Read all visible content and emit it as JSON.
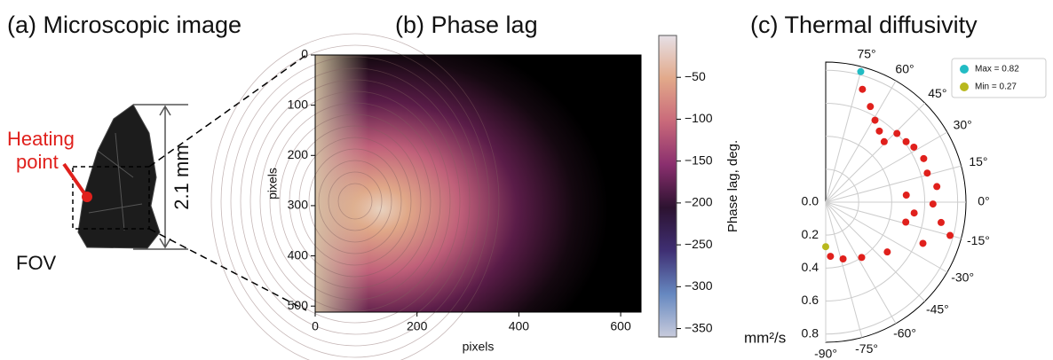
{
  "image_panel": {
    "title": "(a) Microscopic image",
    "heating_label": [
      "Heating",
      "point"
    ],
    "fov_label": "FOV",
    "scale_label": "2.1 mm"
  },
  "chart_data": [
    {
      "type": "heatmap",
      "title": "(b) Phase lag",
      "x_label": "pixels",
      "y_label": "pixels",
      "xlim": [
        0,
        640
      ],
      "ylim": [
        512,
        0
      ],
      "xticks": [
        0,
        200,
        400,
        600
      ],
      "yticks": [
        0,
        100,
        200,
        300,
        400,
        500
      ],
      "colorbar": {
        "label": "Phase lag, deg.",
        "clim": [
          -360,
          0
        ],
        "ticks": [
          {
            "value": -50,
            "label": "−50"
          },
          {
            "value": -100,
            "label": "−100"
          },
          {
            "value": -150,
            "label": "−150"
          },
          {
            "value": -200,
            "label": "−200"
          },
          {
            "value": -250,
            "label": "−250"
          },
          {
            "value": -300,
            "label": "−300"
          },
          {
            "value": -350,
            "label": "−350"
          }
        ],
        "colormap": [
          "#e6e0e6",
          "#e2a98a",
          "#c9697a",
          "#8a2f6e",
          "#2c1230",
          "#3f2f73",
          "#6688c0",
          "#c8cbdc"
        ]
      }
    },
    {
      "type": "polar",
      "title": "(c) Thermal diffusivity",
      "r_label": "mm²/s",
      "rlim": [
        0,
        0.85
      ],
      "thetalim": [
        -90,
        90
      ],
      "rticks": [
        {
          "value": 0,
          "label": "0.0"
        },
        {
          "value": 0.2,
          "label": "0.2"
        },
        {
          "value": 0.4,
          "label": "0.4"
        },
        {
          "value": 0.6,
          "label": "0.6"
        },
        {
          "value": 0.8,
          "label": "0.8"
        }
      ],
      "thetaticks": [
        {
          "value": 75,
          "label": "75°"
        },
        {
          "value": 60,
          "label": "60°"
        },
        {
          "value": 45,
          "label": "45°"
        },
        {
          "value": 30,
          "label": "30°"
        },
        {
          "value": 15,
          "label": "15°"
        },
        {
          "value": 0,
          "label": "0°"
        },
        {
          "value": -15,
          "label": "-15°"
        },
        {
          "value": -30,
          "label": "-30°"
        },
        {
          "value": -45,
          "label": "-45°"
        },
        {
          "value": -60,
          "label": "-60°"
        },
        {
          "value": -75,
          "label": "-75°"
        },
        {
          "value": -90,
          "label": "-90°"
        }
      ],
      "series": [
        {
          "color": "#e0201c",
          "theta": [
            72,
            65,
            59,
            53,
            46,
            44,
            37,
            32,
            24,
            16,
            8,
            -1,
            -10,
            -15,
            -23,
            -39,
            -57,
            -73,
            -85,
            5,
            -14,
            -7
          ],
          "r": [
            0.72,
            0.64,
            0.58,
            0.54,
            0.51,
            0.6,
            0.61,
            0.63,
            0.65,
            0.64,
            0.68,
            0.65,
            0.71,
            0.78,
            0.64,
            0.48,
            0.4,
            0.36,
            0.33,
            0.49,
            0.5,
            0.54
          ]
        },
        {
          "name": "Max = 0.82",
          "color": "#22bcc4",
          "theta": [
            75
          ],
          "r": [
            0.82
          ]
        },
        {
          "name": "Min = 0.27",
          "color": "#b8b81e",
          "theta": [
            -90
          ],
          "r": [
            0.27
          ]
        }
      ]
    }
  ]
}
